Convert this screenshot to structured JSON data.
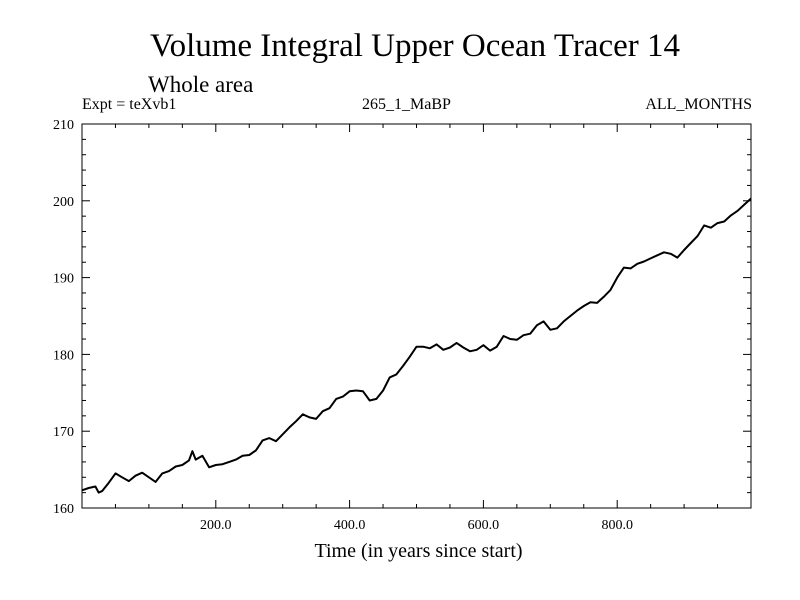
{
  "header": {
    "expt_label": "Expt = teXvb1",
    "run_label": "265_1_MaBP",
    "months_label": "ALL_MONTHS"
  },
  "chart_data": {
    "type": "line",
    "title": "Volume Integral Upper Ocean Tracer 14",
    "subtitle": "Whole area",
    "xlabel": "Time (in years since start)",
    "ylabel": "",
    "xlim": [
      0,
      1000
    ],
    "ylim": [
      160,
      210
    ],
    "xticks": [
      200,
      400,
      600,
      800
    ],
    "xtick_labels": [
      "200.0",
      "400.0",
      "600.0",
      "800.0"
    ],
    "yticks": [
      160,
      170,
      180,
      190,
      200,
      210
    ],
    "ytick_labels": [
      "160",
      "170",
      "180",
      "190",
      "200",
      "210"
    ],
    "grid": false,
    "series": [
      {
        "name": "Volume Integral Upper Ocean Tracer 14",
        "color": "#000000",
        "x": [
          0,
          10,
          20,
          25,
          30,
          40,
          50,
          60,
          70,
          80,
          90,
          100,
          110,
          120,
          130,
          140,
          150,
          160,
          165,
          170,
          180,
          190,
          200,
          210,
          220,
          230,
          240,
          250,
          260,
          270,
          280,
          290,
          300,
          310,
          320,
          330,
          340,
          350,
          360,
          370,
          380,
          390,
          400,
          410,
          420,
          430,
          440,
          450,
          460,
          470,
          480,
          490,
          500,
          510,
          520,
          530,
          540,
          550,
          560,
          570,
          580,
          590,
          600,
          610,
          620,
          630,
          640,
          650,
          660,
          670,
          680,
          690,
          700,
          710,
          720,
          730,
          740,
          750,
          760,
          770,
          780,
          790,
          800,
          810,
          820,
          830,
          840,
          850,
          860,
          870,
          880,
          890,
          900,
          910,
          920,
          930,
          940,
          950,
          960,
          970,
          980,
          990,
          1000
        ],
        "y": [
          162.3,
          162.6,
          162.8,
          162.0,
          162.2,
          163.3,
          164.5,
          164.0,
          163.5,
          164.2,
          164.6,
          164.0,
          163.4,
          164.5,
          164.8,
          165.4,
          165.6,
          166.2,
          167.4,
          166.3,
          166.8,
          165.3,
          165.6,
          165.7,
          166.0,
          166.3,
          166.8,
          166.9,
          167.5,
          168.8,
          169.1,
          168.7,
          169.6,
          170.5,
          171.3,
          172.2,
          171.8,
          171.6,
          172.6,
          173.0,
          174.2,
          174.5,
          175.2,
          175.3,
          175.2,
          174.0,
          174.2,
          175.3,
          177.0,
          177.4,
          178.5,
          179.7,
          181.0,
          181.0,
          180.8,
          181.3,
          180.6,
          180.9,
          181.5,
          180.9,
          180.4,
          180.6,
          181.2,
          180.5,
          181.0,
          182.4,
          182.0,
          181.9,
          182.5,
          182.7,
          183.8,
          184.3,
          183.2,
          183.4,
          184.3,
          185.0,
          185.7,
          186.3,
          186.8,
          186.7,
          187.5,
          188.4,
          190.0,
          191.3,
          191.2,
          191.8,
          192.1,
          192.5,
          192.9,
          193.3,
          193.1,
          192.6,
          193.6,
          194.5,
          195.4,
          196.8,
          196.5,
          197.1,
          197.3,
          198.1,
          198.7,
          199.5,
          200.3
        ]
      }
    ]
  }
}
